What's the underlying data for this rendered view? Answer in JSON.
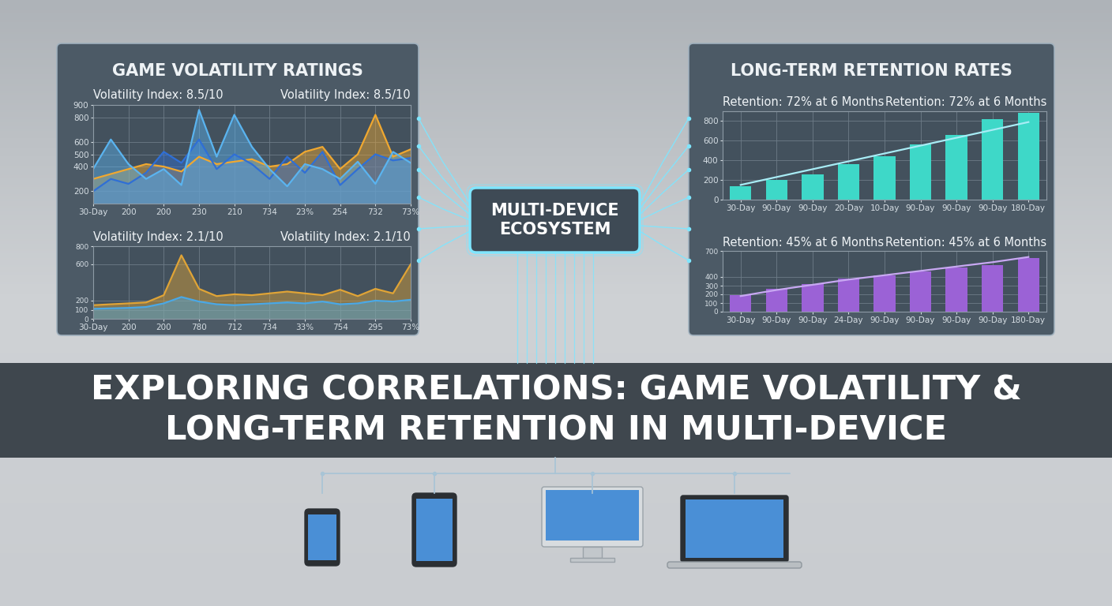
{
  "title": "EXPLORING CORRELATIONS: GAME VOLATILITY & LONG-TERM RETENTION IN MULTI-DEVICE",
  "hub_label": [
    "MULTI-DEVICE",
    "ECOSYSTEM"
  ],
  "panel_titles": [
    "GAME VOLATILITY RATINGS",
    "LONG-TERM RETENTION RATES"
  ],
  "chart_data": [
    {
      "type": "area",
      "annotations": [
        "Volatility Index: 8.5/10",
        "Volatility Index: 8.5/10"
      ],
      "categories": [
        "30-Day",
        null,
        "200",
        null,
        "200",
        null,
        "230",
        null,
        "210",
        null,
        "734",
        null,
        "23%",
        null,
        "254",
        null,
        "732",
        null,
        "73%"
      ],
      "series": [
        {
          "color": "#f0a830",
          "values": [
            300,
            340,
            380,
            420,
            400,
            360,
            480,
            420,
            440,
            460,
            400,
            420,
            520,
            560,
            380,
            500,
            820,
            480,
            540
          ]
        },
        {
          "color": "#2f6fd6",
          "values": [
            200,
            300,
            260,
            350,
            520,
            430,
            620,
            380,
            500,
            420,
            300,
            480,
            350,
            520,
            250,
            380,
            500,
            450,
            470
          ]
        },
        {
          "color": "#5ab4f0",
          "values": [
            380,
            620,
            420,
            300,
            380,
            250,
            860,
            480,
            820,
            560,
            380,
            240,
            420,
            380,
            300,
            440,
            260,
            520,
            430
          ]
        }
      ],
      "ylim": [
        100,
        900
      ],
      "yticks": [
        200,
        400,
        500,
        600,
        800,
        900
      ],
      "grid": true
    },
    {
      "type": "area",
      "annotations": [
        "Volatility Index: 2.1/10",
        "Volatility Index: 2.1/10"
      ],
      "categories": [
        "30-Day",
        null,
        "200",
        null,
        "200",
        null,
        "780",
        null,
        "712",
        null,
        "734",
        null,
        "33%",
        null,
        "754",
        null,
        "295",
        null,
        "73%"
      ],
      "series": [
        {
          "color": "#e0a436",
          "values": [
            150,
            160,
            170,
            180,
            260,
            700,
            330,
            250,
            270,
            260,
            280,
            300,
            280,
            260,
            320,
            250,
            330,
            280,
            600
          ]
        },
        {
          "color": "#4aa8e6",
          "values": [
            110,
            115,
            120,
            130,
            170,
            240,
            190,
            160,
            150,
            160,
            170,
            180,
            170,
            190,
            160,
            170,
            200,
            190,
            210
          ]
        }
      ],
      "ylim": [
        0,
        800
      ],
      "yticks": [
        0,
        100,
        200,
        600,
        800
      ],
      "grid": true
    },
    {
      "type": "bar",
      "annotations": [
        "Retention: 72% at 6 Months",
        "Retention: 72% at 6 Months"
      ],
      "categories": [
        "30-Day",
        "90-Day",
        "90-Day",
        "20-Day",
        "10-Day",
        "90-Day",
        "90-Day",
        "90-Day",
        "180-Day"
      ],
      "series": [
        {
          "type": "bar",
          "color": "#3ed8c8",
          "values": [
            140,
            200,
            260,
            360,
            440,
            560,
            660,
            820,
            880
          ]
        },
        {
          "type": "line",
          "color": "#a8ecf5",
          "values": [
            150,
            230,
            310,
            390,
            470,
            550,
            630,
            710,
            790
          ]
        }
      ],
      "ylim": [
        0,
        900
      ],
      "yticks": [
        0,
        200,
        400,
        600,
        800
      ],
      "grid": true
    },
    {
      "type": "bar",
      "annotations": [
        "Retention: 45% at 6 Months",
        "Retention: 45% at 6 Months"
      ],
      "categories": [
        "30-Day",
        "90-Day",
        "90-Day",
        "24-Day",
        "90-Day",
        "90-Day",
        "90-Day",
        "90-Day",
        "180-Day"
      ],
      "series": [
        {
          "type": "bar",
          "color": "#9b62d6",
          "values": [
            190,
            260,
            320,
            380,
            420,
            460,
            510,
            540,
            620
          ]
        },
        {
          "type": "line",
          "color": "#c8a8f2",
          "values": [
            180,
            250,
            310,
            370,
            420,
            470,
            520,
            570,
            630
          ]
        }
      ],
      "ylim": [
        0,
        700
      ],
      "yticks": [
        0,
        100,
        200,
        300,
        400,
        700
      ],
      "grid": true
    }
  ]
}
